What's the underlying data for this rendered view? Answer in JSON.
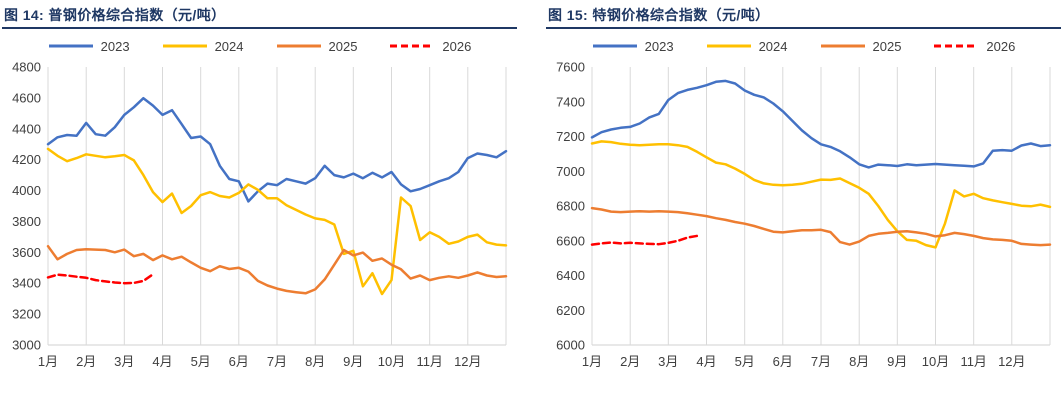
{
  "page": {
    "background": "#ffffff",
    "text_color": "#404040"
  },
  "chart_data": [
    {
      "type": "line",
      "title": "图 14: 普钢价格综合指数（元/吨）",
      "title_color": "#1f3864",
      "grid_color": "#d9d9d9",
      "tick_color": "#404040",
      "legend_position": "top",
      "ylim": [
        3000,
        4800
      ],
      "y_ticks": [
        3000,
        3200,
        3400,
        3600,
        3800,
        4000,
        4200,
        4400,
        4600,
        4800
      ],
      "x_labels": [
        "1月",
        "2月",
        "3月",
        "4月",
        "5月",
        "6月",
        "7月",
        "8月",
        "9月",
        "10月",
        "11月",
        "12月"
      ],
      "series": [
        {
          "name": "2023",
          "color": "#4472c4",
          "dashed": false,
          "x_start": 0,
          "x_step": 0.25,
          "values": [
            4300,
            4345,
            4360,
            4355,
            4438,
            4365,
            4355,
            4410,
            4490,
            4540,
            4598,
            4550,
            4490,
            4520,
            4430,
            4340,
            4350,
            4300,
            4160,
            4075,
            4060,
            3930,
            3995,
            4045,
            4035,
            4075,
            4060,
            4045,
            4080,
            4160,
            4100,
            4085,
            4110,
            4080,
            4115,
            4085,
            4120,
            4040,
            3995,
            4010,
            4035,
            4060,
            4080,
            4120,
            4210,
            4240,
            4230,
            4215,
            4255
          ]
        },
        {
          "name": "2024",
          "color": "#ffc000",
          "dashed": false,
          "x_start": 0,
          "x_step": 0.25,
          "values": [
            4270,
            4225,
            4190,
            4210,
            4235,
            4225,
            4215,
            4222,
            4230,
            4195,
            4100,
            3990,
            3925,
            3980,
            3855,
            3900,
            3970,
            3990,
            3965,
            3955,
            3985,
            4040,
            4005,
            3950,
            3950,
            3905,
            3875,
            3845,
            3820,
            3810,
            3780,
            3590,
            3610,
            3380,
            3465,
            3330,
            3420,
            3955,
            3900,
            3680,
            3730,
            3700,
            3655,
            3670,
            3700,
            3715,
            3665,
            3650,
            3645
          ]
        },
        {
          "name": "2025",
          "color": "#ed7d31",
          "dashed": false,
          "x_start": 0,
          "x_step": 0.25,
          "values": [
            3640,
            3555,
            3590,
            3615,
            3620,
            3618,
            3615,
            3600,
            3618,
            3575,
            3590,
            3550,
            3580,
            3555,
            3572,
            3535,
            3500,
            3478,
            3510,
            3492,
            3500,
            3475,
            3415,
            3385,
            3365,
            3350,
            3342,
            3335,
            3360,
            3425,
            3520,
            3615,
            3580,
            3598,
            3545,
            3560,
            3520,
            3490,
            3430,
            3450,
            3420,
            3435,
            3445,
            3435,
            3450,
            3470,
            3450,
            3440,
            3445
          ]
        },
        {
          "name": "2026",
          "color": "#ff0000",
          "dashed": true,
          "x_start": 0,
          "x_step": 0.25,
          "values": [
            3438,
            3455,
            3450,
            3442,
            3435,
            3420,
            3412,
            3405,
            3400,
            3402,
            3415,
            3458
          ]
        }
      ]
    },
    {
      "type": "line",
      "title": "图 15: 特钢价格综合指数（元/吨）",
      "title_color": "#1f3864",
      "grid_color": "#d9d9d9",
      "tick_color": "#404040",
      "legend_position": "top",
      "ylim": [
        6000,
        7600
      ],
      "y_ticks": [
        6000,
        6200,
        6400,
        6600,
        6800,
        7000,
        7200,
        7400,
        7600
      ],
      "x_labels": [
        "1月",
        "2月",
        "3月",
        "4月",
        "5月",
        "6月",
        "7月",
        "8月",
        "9月",
        "10月",
        "11月",
        "12月"
      ],
      "series": [
        {
          "name": "2023",
          "color": "#4472c4",
          "dashed": false,
          "x_start": 0,
          "x_step": 0.25,
          "values": [
            7195,
            7225,
            7240,
            7250,
            7255,
            7275,
            7310,
            7330,
            7410,
            7450,
            7468,
            7480,
            7495,
            7515,
            7520,
            7505,
            7465,
            7440,
            7425,
            7390,
            7345,
            7290,
            7235,
            7190,
            7155,
            7140,
            7115,
            7080,
            7040,
            7022,
            7038,
            7035,
            7030,
            7040,
            7035,
            7038,
            7042,
            7038,
            7035,
            7032,
            7028,
            7045,
            7118,
            7122,
            7118,
            7148,
            7160,
            7145,
            7150
          ]
        },
        {
          "name": "2024",
          "color": "#ffc000",
          "dashed": false,
          "x_start": 0,
          "x_step": 0.25,
          "values": [
            7160,
            7172,
            7168,
            7158,
            7152,
            7150,
            7152,
            7155,
            7155,
            7150,
            7140,
            7112,
            7080,
            7050,
            7040,
            7015,
            6985,
            6950,
            6930,
            6922,
            6920,
            6922,
            6928,
            6940,
            6952,
            6950,
            6958,
            6932,
            6905,
            6870,
            6800,
            6720,
            6655,
            6605,
            6600,
            6575,
            6562,
            6700,
            6890,
            6855,
            6870,
            6845,
            6832,
            6822,
            6812,
            6802,
            6798,
            6808,
            6795
          ]
        },
        {
          "name": "2025",
          "color": "#ed7d31",
          "dashed": false,
          "x_start": 0,
          "x_step": 0.25,
          "values": [
            6788,
            6780,
            6768,
            6765,
            6768,
            6770,
            6768,
            6770,
            6768,
            6765,
            6758,
            6750,
            6742,
            6730,
            6720,
            6708,
            6698,
            6685,
            6668,
            6652,
            6648,
            6655,
            6660,
            6660,
            6663,
            6650,
            6592,
            6578,
            6595,
            6628,
            6640,
            6645,
            6652,
            6655,
            6648,
            6640,
            6625,
            6632,
            6645,
            6638,
            6628,
            6615,
            6608,
            6605,
            6600,
            6582,
            6578,
            6575,
            6578
          ]
        },
        {
          "name": "2026",
          "color": "#ff0000",
          "dashed": true,
          "x_start": 0,
          "x_step": 0.25,
          "values": [
            6578,
            6585,
            6590,
            6585,
            6588,
            6585,
            6582,
            6580,
            6588,
            6600,
            6618,
            6628
          ]
        }
      ]
    }
  ]
}
